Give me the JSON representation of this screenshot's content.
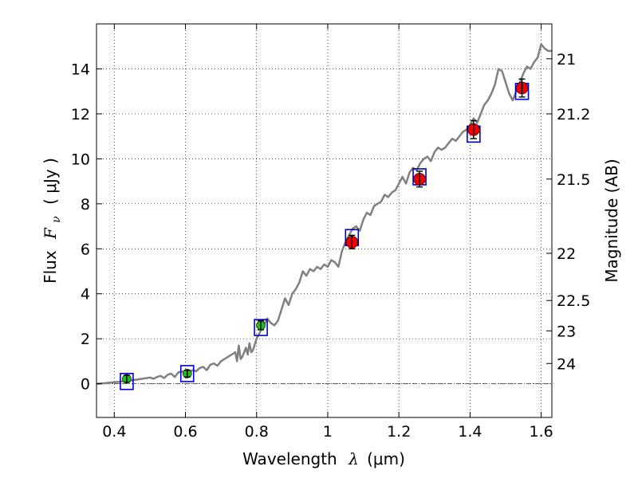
{
  "chart_data": {
    "type": "scatter",
    "title": "",
    "xlabel": "Wavelength",
    "xlabel_math": "λ",
    "xlabel_unit": "(μm)",
    "ylabel": "Flux",
    "ylabel_math": "F",
    "ylabel_sub": "ν",
    "ylabel_unit": "( μJy )",
    "ylabel_right": "Magnitude (AB)",
    "xlim": [
      0.35,
      1.63
    ],
    "ylim": [
      -1.5,
      16
    ],
    "grid": true,
    "x_ticks": [
      0.4,
      0.6,
      0.8,
      1.0,
      1.2,
      1.4,
      1.6
    ],
    "x_tick_labels": [
      "0.4",
      "0.6",
      "0.8",
      "1",
      "1.2",
      "1.4",
      "1.6"
    ],
    "y_ticks": [
      0,
      2,
      4,
      6,
      8,
      10,
      12,
      14
    ],
    "y_tick_labels": [
      "0",
      "2",
      "4",
      "6",
      "8",
      "10",
      "12",
      "14"
    ],
    "right_ticks": [
      {
        "label": "21",
        "flux": 14.45
      },
      {
        "label": "21.2",
        "flux": 12.0
      },
      {
        "label": "21.5",
        "flux": 9.1
      },
      {
        "label": "22",
        "flux": 5.8
      },
      {
        "label": "22.5",
        "flux": 3.7
      },
      {
        "label": "23",
        "flux": 2.35
      },
      {
        "label": "24",
        "flux": 0.9
      }
    ],
    "colors": {
      "model": "#808080",
      "box": "#0000cc",
      "green": "#22bb22",
      "red": "#ee0000",
      "errorbar": "#000000",
      "zero_line": "#555555"
    },
    "model_spectrum": {
      "x": [
        0.35,
        0.37,
        0.39,
        0.41,
        0.43,
        0.45,
        0.47,
        0.49,
        0.5,
        0.51,
        0.52,
        0.53,
        0.54,
        0.55,
        0.56,
        0.57,
        0.58,
        0.59,
        0.6,
        0.61,
        0.62,
        0.63,
        0.64,
        0.65,
        0.66,
        0.67,
        0.68,
        0.69,
        0.7,
        0.71,
        0.72,
        0.73,
        0.74,
        0.745,
        0.75,
        0.755,
        0.76,
        0.77,
        0.775,
        0.78,
        0.785,
        0.79,
        0.8,
        0.81,
        0.82,
        0.83,
        0.84,
        0.85,
        0.86,
        0.87,
        0.88,
        0.89,
        0.9,
        0.91,
        0.92,
        0.93,
        0.94,
        0.95,
        0.96,
        0.97,
        0.98,
        0.99,
        1.0,
        1.01,
        1.02,
        1.03,
        1.04,
        1.05,
        1.06,
        1.07,
        1.08,
        1.09,
        1.1,
        1.11,
        1.12,
        1.13,
        1.14,
        1.15,
        1.16,
        1.17,
        1.18,
        1.19,
        1.2,
        1.21,
        1.22,
        1.23,
        1.24,
        1.25,
        1.26,
        1.27,
        1.28,
        1.29,
        1.3,
        1.31,
        1.32,
        1.33,
        1.34,
        1.35,
        1.36,
        1.37,
        1.38,
        1.39,
        1.4,
        1.41,
        1.42,
        1.43,
        1.44,
        1.45,
        1.46,
        1.47,
        1.48,
        1.49,
        1.5,
        1.51,
        1.52,
        1.53,
        1.54,
        1.55,
        1.56,
        1.57,
        1.58,
        1.59,
        1.6,
        1.61,
        1.62,
        1.63
      ],
      "y": [
        0.0,
        0.02,
        0.05,
        0.08,
        0.12,
        0.15,
        0.2,
        0.25,
        0.28,
        0.22,
        0.3,
        0.35,
        0.25,
        0.4,
        0.45,
        0.3,
        0.5,
        0.55,
        0.45,
        0.5,
        0.6,
        0.55,
        0.7,
        0.75,
        0.6,
        0.85,
        0.9,
        0.8,
        1.0,
        1.1,
        1.2,
        1.3,
        1.4,
        1.0,
        1.7,
        1.1,
        1.2,
        1.6,
        1.3,
        1.8,
        1.4,
        1.5,
        2.0,
        2.3,
        2.6,
        2.9,
        2.7,
        2.6,
        2.8,
        3.3,
        3.8,
        3.5,
        4.0,
        4.2,
        4.5,
        5.0,
        4.8,
        5.1,
        5.0,
        5.2,
        5.1,
        5.3,
        5.2,
        5.5,
        5.4,
        5.2,
        5.9,
        6.3,
        6.6,
        6.9,
        7.0,
        6.8,
        7.3,
        7.6,
        7.5,
        7.9,
        8.0,
        8.1,
        8.4,
        8.3,
        8.5,
        8.6,
        8.9,
        9.2,
        8.9,
        9.4,
        9.6,
        9.5,
        9.8,
        10.0,
        10.1,
        9.9,
        10.3,
        10.5,
        10.4,
        10.5,
        10.7,
        10.9,
        10.8,
        11.0,
        11.2,
        11.3,
        11.5,
        11.8,
        11.6,
        12.0,
        12.4,
        12.6,
        12.9,
        13.3,
        14.0,
        13.9,
        13.4,
        12.9,
        12.6,
        13.0,
        13.4,
        13.8,
        14.1,
        14.0,
        14.3,
        14.5,
        15.1,
        14.9,
        14.8,
        14.8
      ]
    },
    "photometry_boxes": {
      "x": [
        0.435,
        0.605,
        0.812,
        1.068,
        1.258,
        1.41,
        1.546
      ],
      "y": [
        0.1,
        0.45,
        2.5,
        6.5,
        9.2,
        11.1,
        13.0
      ]
    },
    "observed_green": {
      "x": [
        0.435,
        0.605,
        0.812
      ],
      "y": [
        0.22,
        0.45,
        2.6
      ],
      "err": [
        0.15,
        0.15,
        0.2
      ]
    },
    "observed_red": {
      "x": [
        1.068,
        1.258,
        1.41,
        1.546
      ],
      "y": [
        6.3,
        9.1,
        11.3,
        13.15
      ],
      "err": [
        0.3,
        0.35,
        0.4,
        0.4
      ]
    }
  }
}
